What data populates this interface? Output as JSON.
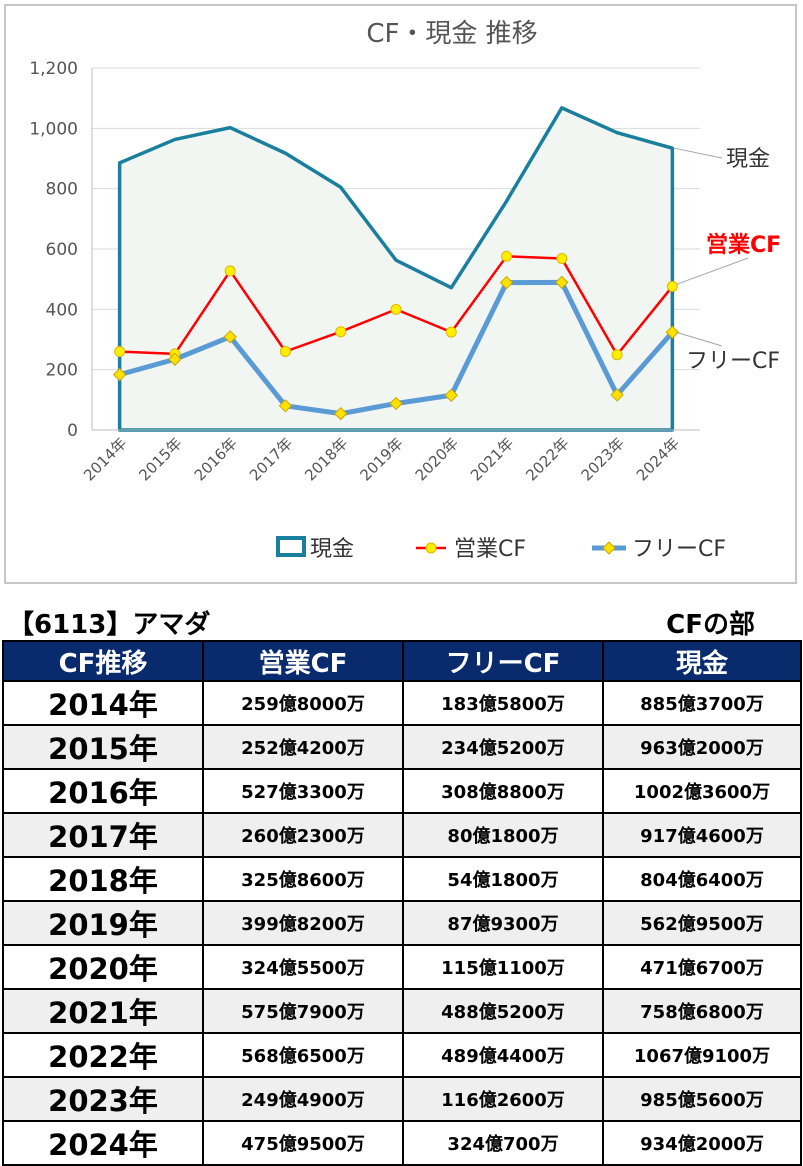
{
  "chart_data": {
    "type": "line",
    "title": "CF・現金 推移",
    "categories": [
      "2014年",
      "2015年",
      "2016年",
      "2017年",
      "2018年",
      "2019年",
      "2020年",
      "2021年",
      "2022年",
      "2023年",
      "2024年"
    ],
    "ylim": [
      0,
      1200
    ],
    "yticks": [
      "0",
      "200",
      "400",
      "600",
      "800",
      "1,000",
      "1,200"
    ],
    "grid": true,
    "legend_position": "bottom",
    "series": [
      {
        "name": "現金",
        "style": "area",
        "color": "#1a7f9c",
        "fill": "#f1f6f3",
        "values": [
          885.37,
          963.2,
          1002.36,
          917.46,
          804.64,
          562.95,
          471.67,
          758.68,
          1067.91,
          985.56,
          934.2
        ]
      },
      {
        "name": "営業CF",
        "style": "line-marker",
        "color": "#ff0000",
        "marker_color": "#ffee00",
        "values": [
          259.8,
          252.42,
          527.33,
          260.23,
          325.86,
          399.82,
          324.55,
          575.79,
          568.65,
          249.49,
          475.95
        ]
      },
      {
        "name": "フリーCF",
        "style": "line-diamond",
        "color": "#5b9bd5",
        "marker_color": "#ffe100",
        "values": [
          183.58,
          234.52,
          308.88,
          80.18,
          54.18,
          87.93,
          115.11,
          488.52,
          489.44,
          116.26,
          324.07
        ]
      }
    ],
    "callouts": [
      {
        "series": "現金",
        "text": "現金",
        "color": "#333333"
      },
      {
        "series": "営業CF",
        "text": "営業CF",
        "color": "#ff0000"
      },
      {
        "series": "フリーCF",
        "text": "フリーCF",
        "color": "#333333"
      }
    ]
  },
  "company_label": "【6113】アマダ",
  "section_label": "CFの部",
  "table": {
    "headers": [
      "CF推移",
      "営業CF",
      "フリーCF",
      "現金"
    ],
    "rows": [
      [
        "2014年",
        "259億8000万",
        "183億5800万",
        "885億3700万"
      ],
      [
        "2015年",
        "252億4200万",
        "234億5200万",
        "963億2000万"
      ],
      [
        "2016年",
        "527億3300万",
        "308億8800万",
        "1002億3600万"
      ],
      [
        "2017年",
        "260億2300万",
        "80億1800万",
        "917億4600万"
      ],
      [
        "2018年",
        "325億8600万",
        "54億1800万",
        "804億6400万"
      ],
      [
        "2019年",
        "399億8200万",
        "87億9300万",
        "562億9500万"
      ],
      [
        "2020年",
        "324億5500万",
        "115億1100万",
        "471億6700万"
      ],
      [
        "2021年",
        "575億7900万",
        "488億5200万",
        "758億6800万"
      ],
      [
        "2022年",
        "568億6500万",
        "489億4400万",
        "1067億9100万"
      ],
      [
        "2023年",
        "249億4900万",
        "116億2600万",
        "985億5600万"
      ],
      [
        "2024年",
        "475億9500万",
        "324億700万",
        "934億2000万"
      ]
    ]
  }
}
